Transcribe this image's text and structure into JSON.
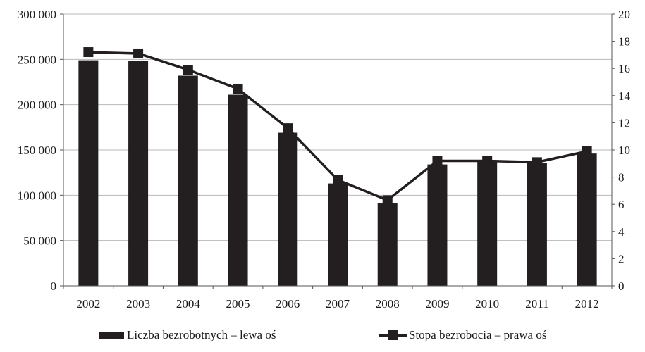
{
  "chart_data": {
    "type": "bar+line",
    "categories": [
      "2002",
      "2003",
      "2004",
      "2005",
      "2006",
      "2007",
      "2008",
      "2009",
      "2010",
      "2011",
      "2012"
    ],
    "series": [
      {
        "name": "Liczba bezrobotnych – lewa oś",
        "type": "bar",
        "axis": "left",
        "values": [
          249000,
          248000,
          232000,
          211000,
          169000,
          113000,
          91000,
          134000,
          137000,
          136000,
          146000
        ]
      },
      {
        "name": "Stopa bezrobocia – prawa oś",
        "type": "line",
        "axis": "right",
        "marker": "square",
        "values": [
          17.2,
          17.1,
          15.9,
          14.5,
          11.6,
          7.8,
          6.3,
          9.2,
          9.2,
          9.1,
          9.9
        ]
      }
    ],
    "y_left": {
      "lim": [
        0,
        300000
      ],
      "ticks": [
        "0",
        "50 000",
        "100 000",
        "150 000",
        "200 000",
        "250 000",
        "300 000"
      ]
    },
    "y_right": {
      "lim": [
        0,
        20
      ],
      "ticks": [
        "0",
        "2",
        "4",
        "6",
        "8",
        "10",
        "12",
        "14",
        "16",
        "18",
        "20"
      ]
    },
    "grid": "horizontal",
    "legend_position": "bottom",
    "colors": {
      "bar": "#231f20",
      "line": "#231f20",
      "grid": "#b8b8b8",
      "axis": "#555555"
    }
  }
}
